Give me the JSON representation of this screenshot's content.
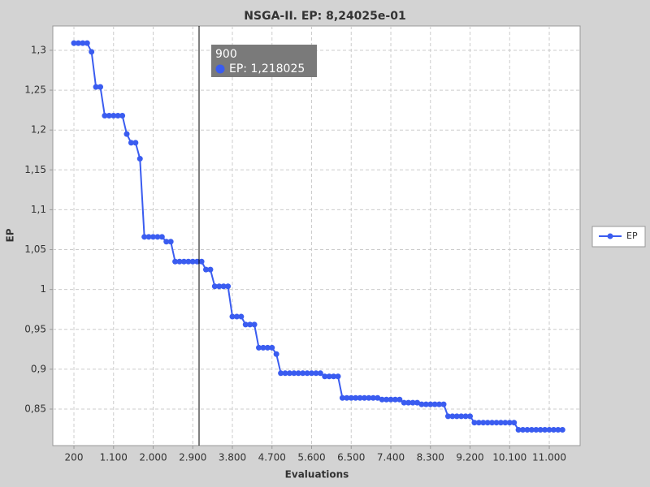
{
  "chart_data": {
    "type": "line",
    "title": "NSGA-II. EP: 8,24025e-01",
    "x_label": "Evaluations",
    "y_label": "EP",
    "x": [
      200,
      300,
      400,
      500,
      600,
      700,
      800,
      900,
      1000,
      1100,
      1200,
      1300,
      1400,
      1500,
      1600,
      1700,
      1800,
      1900,
      2000,
      2100,
      2200,
      2300,
      2400,
      2500,
      2600,
      2700,
      2800,
      2900,
      3000,
      3100,
      3200,
      3300,
      3400,
      3500,
      3600,
      3700,
      3800,
      3900,
      4000,
      4100,
      4200,
      4300,
      4400,
      4500,
      4600,
      4700,
      4800,
      4900,
      5000,
      5100,
      5200,
      5300,
      5400,
      5500,
      5600,
      5700,
      5800,
      5900,
      6000,
      6100,
      6200,
      6300,
      6400,
      6500,
      6600,
      6700,
      6800,
      6900,
      7000,
      7100,
      7200,
      7300,
      7400,
      7500,
      7600,
      7700,
      7800,
      7900,
      8000,
      8100,
      8200,
      8300,
      8400,
      8500,
      8600,
      8700,
      8800,
      8900,
      9000,
      9100,
      9200,
      9300,
      9400,
      9500,
      9600,
      9700,
      9800,
      9900,
      10000,
      10100,
      10200,
      10300,
      10400,
      10500,
      10600,
      10700,
      10800,
      10900,
      11000,
      11100,
      11200,
      11300
    ],
    "series": [
      {
        "name": "EP",
        "color": "#3a5cf0",
        "values": [
          1.309,
          1.309,
          1.309,
          1.309,
          1.298,
          1.254,
          1.254,
          1.218025,
          1.218,
          1.218,
          1.218,
          1.218,
          1.195,
          1.184,
          1.184,
          1.164,
          1.066,
          1.066,
          1.066,
          1.066,
          1.066,
          1.06,
          1.06,
          1.035,
          1.035,
          1.035,
          1.035,
          1.035,
          1.035,
          1.035,
          1.025,
          1.025,
          1.004,
          1.004,
          1.004,
          1.004,
          0.966,
          0.966,
          0.966,
          0.956,
          0.956,
          0.956,
          0.927,
          0.927,
          0.927,
          0.927,
          0.919,
          0.895,
          0.895,
          0.895,
          0.895,
          0.895,
          0.895,
          0.895,
          0.895,
          0.895,
          0.895,
          0.891,
          0.891,
          0.891,
          0.891,
          0.864,
          0.864,
          0.864,
          0.864,
          0.864,
          0.864,
          0.864,
          0.864,
          0.864,
          0.862,
          0.862,
          0.862,
          0.862,
          0.862,
          0.858,
          0.858,
          0.858,
          0.858,
          0.856,
          0.856,
          0.856,
          0.856,
          0.856,
          0.856,
          0.841,
          0.841,
          0.841,
          0.841,
          0.841,
          0.841,
          0.833,
          0.833,
          0.833,
          0.833,
          0.833,
          0.833,
          0.833,
          0.833,
          0.833,
          0.833,
          0.824025,
          0.824025,
          0.824025,
          0.824025,
          0.824025,
          0.824025,
          0.824025,
          0.824025,
          0.824025,
          0.824025,
          0.824025
        ]
      }
    ],
    "xlim": [
      -280,
      11701
    ],
    "ylim": [
      0.8042,
      1.3305
    ],
    "xticks": [
      200,
      {
        "value": 1100,
        "label": "1.100"
      },
      {
        "value": 2000,
        "label": "2.000"
      },
      {
        "value": 2900,
        "label": "2.900"
      },
      {
        "value": 3800,
        "label": "3.800"
      },
      {
        "value": 4700,
        "label": "4.700"
      },
      {
        "value": 5600,
        "label": "5.600"
      },
      {
        "value": 6500,
        "label": "6.500"
      },
      {
        "value": 7400,
        "label": "7.400"
      },
      {
        "value": 8300,
        "label": "8.300"
      },
      {
        "value": 9200,
        "label": "9.200"
      },
      {
        "value": 10100,
        "label": "10.100"
      },
      {
        "value": 11000,
        "label": "11.000"
      }
    ],
    "yticks": [
      {
        "value": 0.85,
        "label": "0,85"
      },
      {
        "value": 0.9,
        "label": "0,9"
      },
      {
        "value": 0.95,
        "label": "0,95"
      },
      1,
      {
        "value": 1.05,
        "label": "1,05"
      },
      {
        "value": 1.1,
        "label": "1,1"
      },
      {
        "value": 1.15,
        "label": "1,15"
      },
      {
        "value": 1.2,
        "label": "1,2"
      },
      {
        "value": 1.25,
        "label": "1,25"
      },
      {
        "value": 1.3,
        "label": "1,3"
      }
    ],
    "grid": true,
    "legend": "right",
    "tooltip": {
      "title": "900",
      "text": "EP: 1,218025"
    }
  }
}
